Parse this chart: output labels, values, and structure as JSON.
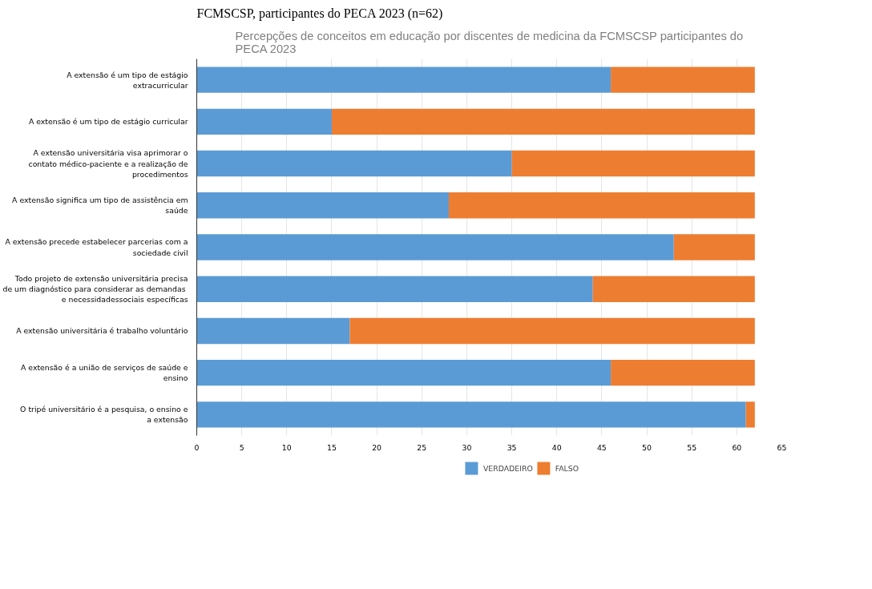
{
  "chart_data": {
    "type": "bar",
    "orientation": "horizontal",
    "stacked": true,
    "title": "Percepções de conceitos em educação por discentes de medicina da FCMSCSP participantes do PECA 2023",
    "annotations": [
      "FCMSCSP, participantes do PECA 2023 (n=62)"
    ],
    "categories": [
      "A extensão é um tipo de estágio extracurricular",
      "A extensão é um tipo de estágio curricular",
      "A extensão universitária visa aprimorar o contato médico-paciente e a realização de procedimentos",
      "A extensão significa um tipo de assistência em saúde",
      "A extensão precede estabelecer parcerias com a sociedade civil",
      "Todo projeto de extensão universitária precisa de um  diagnóstico para considerar as demandas e necessidadessociais específicas",
      "A extensão universitária é trabalho voluntário",
      "A extensão é a união de serviços de saúde e ensino",
      "O tripé universitário é a pesquisa, o ensino e a extensão"
    ],
    "series": [
      {
        "name": "VERDADEIRO",
        "color": "#5b9bd5",
        "values": [
          46,
          15,
          35,
          28,
          53,
          44,
          17,
          46,
          61
        ]
      },
      {
        "name": "FALSO",
        "color": "#ed7d31",
        "values": [
          16,
          47,
          27,
          34,
          9,
          18,
          45,
          16,
          1
        ]
      }
    ],
    "xlim": [
      0,
      65
    ],
    "xticks": [
      0,
      5,
      10,
      15,
      20,
      25,
      30,
      35,
      40,
      45,
      50,
      55,
      60,
      65
    ],
    "grid": "x",
    "legend": "bottom"
  }
}
